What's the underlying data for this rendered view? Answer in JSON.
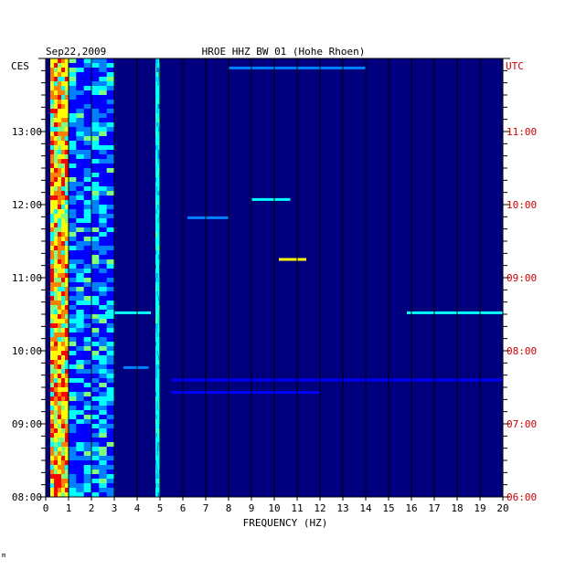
{
  "chart_data": {
    "type": "heatmap",
    "title_date": "Sep22,2009",
    "title_station": "HROE HHZ BW 01 (Hohe Rhoen)",
    "left_tz": "CES",
    "right_tz": "UTC",
    "xlabel": "FREQUENCY (HZ)",
    "xlim": [
      0,
      20
    ],
    "x_ticks": [
      "0",
      "1",
      "2",
      "3",
      "4",
      "5",
      "6",
      "7",
      "8",
      "9",
      "10",
      "11",
      "12",
      "13",
      "14",
      "15",
      "16",
      "17",
      "18",
      "19",
      "20"
    ],
    "y_range_hours_ces": [
      8.0,
      14.0
    ],
    "left_ticks": [
      {
        "hour": 13,
        "label": "13:00"
      },
      {
        "hour": 12,
        "label": "12:00"
      },
      {
        "hour": 11,
        "label": "11:00"
      },
      {
        "hour": 10,
        "label": "10:00"
      },
      {
        "hour": 9,
        "label": "09:00"
      },
      {
        "hour": 8,
        "label": "08:00"
      }
    ],
    "right_ticks": [
      {
        "hour": 13,
        "label": "11:00"
      },
      {
        "hour": 12,
        "label": "10:00"
      },
      {
        "hour": 11,
        "label": "09:00"
      },
      {
        "hour": 10,
        "label": "08:00"
      },
      {
        "hour": 9,
        "label": "07:00"
      },
      {
        "hour": 8,
        "label": "06:00"
      }
    ],
    "colormap": [
      "#00007f",
      "#0000ff",
      "#007fff",
      "#00ffff",
      "#7fff7f",
      "#ffff00",
      "#ff7f00",
      "#ff0000",
      "#7f0000"
    ],
    "background_color": "#00007f",
    "grid": true,
    "frequency_bands": [
      {
        "f_low": 0.2,
        "f_high": 1.0,
        "intensity": "high"
      },
      {
        "f_low": 1.0,
        "f_high": 3.0,
        "intensity": "medium"
      },
      {
        "f_low": 4.8,
        "f_high": 5.0,
        "intensity": "medium"
      }
    ],
    "events": [
      {
        "hour": 13.87,
        "f_low": 8.0,
        "f_high": 14.0,
        "level": 2
      },
      {
        "hour": 12.07,
        "f_low": 9.0,
        "f_high": 10.7,
        "level": 3
      },
      {
        "hour": 11.82,
        "f_low": 6.2,
        "f_high": 8.0,
        "level": 2
      },
      {
        "hour": 11.25,
        "f_low": 10.2,
        "f_high": 11.4,
        "level": 5
      },
      {
        "hour": 10.52,
        "f_low": 15.8,
        "f_high": 20.0,
        "level": 3
      },
      {
        "hour": 10.52,
        "f_low": 2.6,
        "f_high": 4.6,
        "level": 3
      },
      {
        "hour": 9.77,
        "f_low": 3.4,
        "f_high": 4.5,
        "level": 2
      },
      {
        "hour": 9.6,
        "f_low": 5.5,
        "f_high": 20.0,
        "level": 1
      },
      {
        "hour": 9.43,
        "f_low": 5.5,
        "f_high": 12.0,
        "level": 1
      }
    ]
  },
  "footer_mark": "m"
}
